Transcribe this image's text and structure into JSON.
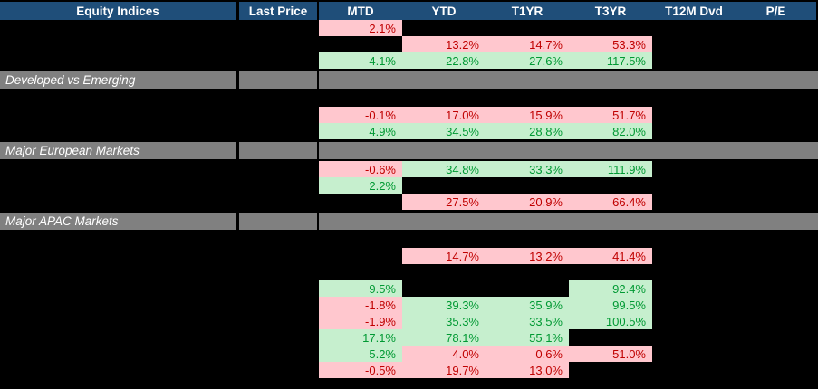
{
  "app": {
    "description": "Equity indices performance table with redacted index names and prices",
    "colors": {
      "canvas": "#000000",
      "header_bg": "#1F4E79",
      "header_text": "#FFFFFF",
      "section_bg": "#808080",
      "section_text": "#FFFFFF",
      "negative_bg": "#FFC7CE",
      "negative_text": "#C00000",
      "positive_bg": "#C6EFCE",
      "positive_text": "#009933"
    }
  },
  "table": {
    "columns": [
      {
        "key": "index",
        "label": "Equity Indices"
      },
      {
        "key": "last",
        "label": "Last Price"
      },
      {
        "key": "mtd",
        "label": "MTD"
      },
      {
        "key": "ytd",
        "label": "YTD"
      },
      {
        "key": "t1yr",
        "label": "T1YR"
      },
      {
        "key": "t3yr",
        "label": "T3YR"
      },
      {
        "key": "t12m",
        "label": "T12M Dvd"
      },
      {
        "key": "pe",
        "label": "P/E"
      }
    ],
    "rows": [
      {
        "type": "data",
        "cells": {
          "mtd": {
            "text": "2.1%",
            "tone": "neg"
          }
        }
      },
      {
        "type": "data",
        "cells": {
          "ytd": {
            "text": "13.2%",
            "tone": "neg"
          },
          "t1yr": {
            "text": "14.7%",
            "tone": "neg"
          },
          "t3yr": {
            "text": "53.3%",
            "tone": "neg"
          }
        }
      },
      {
        "type": "data",
        "cells": {
          "mtd": {
            "text": "4.1%",
            "tone": "pos"
          },
          "ytd": {
            "text": "22.8%",
            "tone": "pos"
          },
          "t1yr": {
            "text": "27.6%",
            "tone": "pos"
          },
          "t3yr": {
            "text": "117.5%",
            "tone": "pos"
          }
        }
      },
      {
        "type": "section",
        "label": "Developed vs Emerging"
      },
      {
        "type": "blank"
      },
      {
        "type": "data",
        "cells": {
          "mtd": {
            "text": "-0.1%",
            "tone": "neg"
          },
          "ytd": {
            "text": "17.0%",
            "tone": "neg"
          },
          "t1yr": {
            "text": "15.9%",
            "tone": "neg"
          },
          "t3yr": {
            "text": "51.7%",
            "tone": "neg"
          }
        }
      },
      {
        "type": "data",
        "cells": {
          "mtd": {
            "text": "4.9%",
            "tone": "pos"
          },
          "ytd": {
            "text": "34.5%",
            "tone": "pos"
          },
          "t1yr": {
            "text": "28.8%",
            "tone": "pos"
          },
          "t3yr": {
            "text": "82.0%",
            "tone": "pos"
          }
        }
      },
      {
        "type": "section",
        "label": "Major European Markets"
      },
      {
        "type": "data",
        "cells": {
          "mtd": {
            "text": "-0.6%",
            "tone": "neg"
          },
          "ytd": {
            "text": "34.8%",
            "tone": "pos"
          },
          "t1yr": {
            "text": "33.3%",
            "tone": "pos"
          },
          "t3yr": {
            "text": "111.9%",
            "tone": "pos"
          }
        }
      },
      {
        "type": "data",
        "cells": {
          "mtd": {
            "text": "2.2%",
            "tone": "pos"
          }
        }
      },
      {
        "type": "data",
        "cells": {
          "ytd": {
            "text": "27.5%",
            "tone": "neg"
          },
          "t1yr": {
            "text": "20.9%",
            "tone": "neg"
          },
          "t3yr": {
            "text": "66.4%",
            "tone": "neg"
          }
        }
      },
      {
        "type": "section",
        "label": "Major APAC Markets"
      },
      {
        "type": "blank"
      },
      {
        "type": "data",
        "cells": {
          "ytd": {
            "text": "14.7%",
            "tone": "neg"
          },
          "t1yr": {
            "text": "13.2%",
            "tone": "neg"
          },
          "t3yr": {
            "text": "41.4%",
            "tone": "neg"
          }
        }
      },
      {
        "type": "blank"
      },
      {
        "type": "data",
        "cells": {
          "mtd": {
            "text": "9.5%",
            "tone": "pos"
          },
          "t3yr": {
            "text": "92.4%",
            "tone": "pos"
          }
        }
      },
      {
        "type": "data",
        "cells": {
          "mtd": {
            "text": "-1.8%",
            "tone": "neg"
          },
          "ytd": {
            "text": "39.3%",
            "tone": "pos"
          },
          "t1yr": {
            "text": "35.9%",
            "tone": "pos"
          },
          "t3yr": {
            "text": "99.5%",
            "tone": "pos"
          }
        }
      },
      {
        "type": "data",
        "cells": {
          "mtd": {
            "text": "-1.9%",
            "tone": "neg"
          },
          "ytd": {
            "text": "35.3%",
            "tone": "pos"
          },
          "t1yr": {
            "text": "33.5%",
            "tone": "pos"
          },
          "t3yr": {
            "text": "100.5%",
            "tone": "pos"
          }
        }
      },
      {
        "type": "data",
        "cells": {
          "mtd": {
            "text": "17.1%",
            "tone": "pos"
          },
          "ytd": {
            "text": "78.1%",
            "tone": "pos"
          },
          "t1yr": {
            "text": "55.1%",
            "tone": "pos"
          }
        }
      },
      {
        "type": "data",
        "cells": {
          "mtd": {
            "text": "5.2%",
            "tone": "pos"
          },
          "ytd": {
            "text": "4.0%",
            "tone": "neg"
          },
          "t1yr": {
            "text": "0.6%",
            "tone": "neg"
          },
          "t3yr": {
            "text": "51.0%",
            "tone": "neg"
          }
        }
      },
      {
        "type": "data",
        "cells": {
          "mtd": {
            "text": "-0.5%",
            "tone": "neg"
          },
          "ytd": {
            "text": "19.7%",
            "tone": "neg"
          },
          "t1yr": {
            "text": "13.0%",
            "tone": "neg"
          }
        }
      }
    ]
  }
}
